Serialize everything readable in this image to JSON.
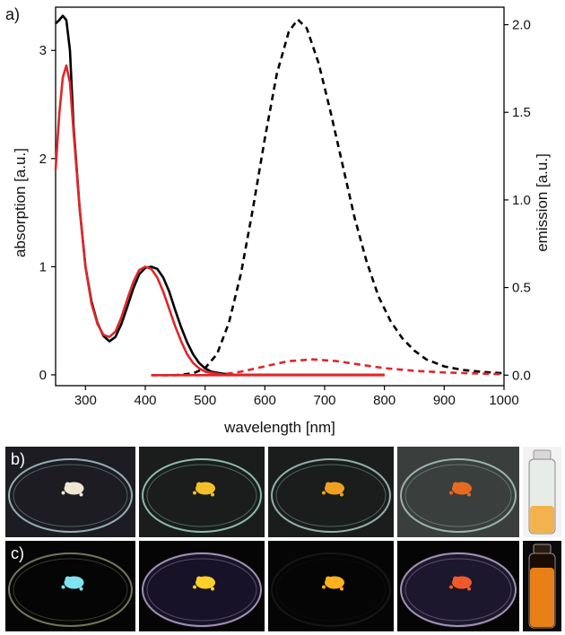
{
  "panels": {
    "a": "a)",
    "b": "b)",
    "c": "c)"
  },
  "chart_data": {
    "type": "line",
    "title": "",
    "xlabel": "wavelength [nm]",
    "ylabel_left": "absorption [a.u.]",
    "ylabel_right": "emission [a.u.]",
    "xlim": [
      250,
      1000
    ],
    "ylim_left": [
      -0.1,
      3.4
    ],
    "ylim_right": [
      -0.06,
      2.1
    ],
    "x_ticks": [
      300,
      400,
      500,
      600,
      700,
      800,
      900,
      1000
    ],
    "x_tick_labels": [
      "300",
      "400",
      "500",
      "600",
      "700",
      "800",
      "900",
      "1000"
    ],
    "y_left_ticks": [
      0,
      1,
      2,
      3
    ],
    "y_left_tick_labels": [
      "0",
      "1",
      "2",
      "3"
    ],
    "y_right_ticks": [
      0,
      0.5,
      1.0,
      1.5,
      2.0
    ],
    "y_right_tick_labels": [
      "0.0",
      "0.5",
      "1.0",
      "1.5",
      "2.0"
    ],
    "grid": false,
    "legend": "none",
    "series": [
      {
        "axis": "left",
        "style": "solid",
        "color": "#000000",
        "x": [
          250,
          256,
          262,
          268,
          274,
          280,
          290,
          300,
          310,
          320,
          330,
          340,
          350,
          360,
          370,
          380,
          390,
          400,
          410,
          420,
          430,
          440,
          450,
          460,
          470,
          480,
          490,
          500,
          510,
          520,
          530,
          550,
          600,
          650,
          700,
          750,
          800
        ],
        "y": [
          3.25,
          3.28,
          3.32,
          3.28,
          3.0,
          2.3,
          1.55,
          1.0,
          0.68,
          0.48,
          0.36,
          0.31,
          0.35,
          0.47,
          0.63,
          0.8,
          0.93,
          0.99,
          1.0,
          0.98,
          0.9,
          0.77,
          0.6,
          0.44,
          0.3,
          0.19,
          0.11,
          0.06,
          0.03,
          0.02,
          0.01,
          0.0,
          0.0,
          0.0,
          0.0,
          0.0,
          0.0
        ]
      },
      {
        "axis": "left",
        "style": "solid",
        "color": "#e0262a",
        "x": [
          250,
          256,
          262,
          268,
          274,
          280,
          290,
          300,
          310,
          320,
          330,
          340,
          350,
          360,
          370,
          380,
          390,
          400,
          410,
          420,
          430,
          440,
          450,
          460,
          470,
          480,
          490,
          500,
          510,
          520,
          530,
          550,
          600,
          650,
          700,
          750,
          800
        ],
        "y": [
          1.9,
          2.4,
          2.75,
          2.86,
          2.7,
          2.25,
          1.55,
          1.0,
          0.66,
          0.47,
          0.37,
          0.35,
          0.4,
          0.53,
          0.7,
          0.86,
          0.97,
          1.0,
          0.98,
          0.9,
          0.77,
          0.61,
          0.45,
          0.31,
          0.19,
          0.11,
          0.06,
          0.03,
          0.02,
          0.01,
          0.0,
          0.0,
          0.0,
          0.0,
          0.0,
          0.0,
          0.0
        ]
      },
      {
        "axis": "right",
        "style": "dashed",
        "color": "#000000",
        "x": [
          410,
          450,
          480,
          500,
          520,
          540,
          560,
          580,
          600,
          620,
          640,
          655,
          670,
          690,
          710,
          730,
          750,
          770,
          790,
          810,
          830,
          850,
          870,
          900,
          930,
          960,
          1000
        ],
        "y": [
          0.0,
          0.0,
          0.01,
          0.04,
          0.12,
          0.3,
          0.58,
          0.95,
          1.35,
          1.72,
          1.96,
          2.03,
          1.98,
          1.78,
          1.5,
          1.2,
          0.9,
          0.65,
          0.45,
          0.31,
          0.21,
          0.14,
          0.09,
          0.05,
          0.03,
          0.02,
          0.01
        ]
      },
      {
        "axis": "right",
        "style": "dashed",
        "color": "#e0262a",
        "x": [
          410,
          450,
          500,
          530,
          560,
          600,
          640,
          680,
          720,
          760,
          800,
          850,
          900,
          950,
          1000
        ],
        "y": [
          0.0,
          0.0,
          0.0,
          0.005,
          0.02,
          0.05,
          0.08,
          0.09,
          0.08,
          0.06,
          0.04,
          0.025,
          0.015,
          0.01,
          0.005
        ]
      },
      {
        "axis": "right",
        "style": "solid",
        "color": "#e0262a",
        "x": [
          415,
          500,
          600,
          700,
          800
        ],
        "y": [
          0.0,
          0.0,
          0.0,
          0.0,
          0.0
        ]
      }
    ]
  },
  "photos": {
    "row_b": [
      {
        "name": "dish-white-powder",
        "powder": "#efe7d2"
      },
      {
        "name": "dish-yellow-powder",
        "powder": "#f2c12a"
      },
      {
        "name": "dish-orange-powder",
        "powder": "#f0a021"
      },
      {
        "name": "dish-red-orange-powder",
        "powder": "#e66a1f"
      }
    ],
    "row_c": [
      {
        "name": "dish-cyan-glow",
        "powder": "#7fe3f0"
      },
      {
        "name": "dish-yellow-glow",
        "powder": "#ffd02a"
      },
      {
        "name": "dish-orange-glow",
        "powder": "#ffb01e"
      },
      {
        "name": "dish-red-glow",
        "powder": "#f05a2a"
      }
    ],
    "vial_b": {
      "liquid": "#f5a424"
    },
    "vial_c": {
      "liquid": "#ff8c1a"
    }
  }
}
